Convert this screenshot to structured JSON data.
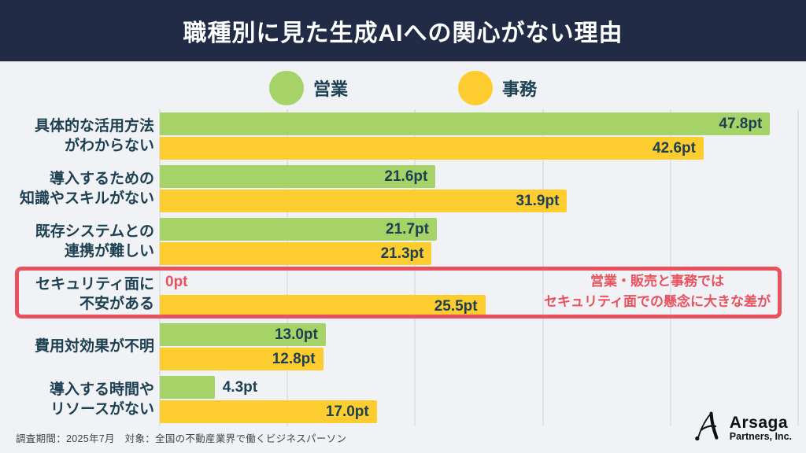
{
  "header": {
    "title": "職種別に見た生成AIへの関心がない理由",
    "bg_color": "#212b46"
  },
  "chart_data": {
    "type": "bar",
    "orientation": "horizontal",
    "unit": "pt",
    "axis_max": 50,
    "gridlines_every": 10,
    "grid": true,
    "legend_position": "top-center",
    "series": [
      {
        "name": "営業",
        "color": "#a5d368"
      },
      {
        "name": "事務",
        "color": "#fdcc2f"
      }
    ],
    "categories": [
      {
        "label_lines": [
          "具体的な活用方法",
          "がわからない"
        ],
        "values": [
          47.8,
          42.6
        ],
        "value_labels": [
          "47.8pt",
          "42.6pt"
        ]
      },
      {
        "label_lines": [
          "導入するための",
          "知識やスキルがない"
        ],
        "values": [
          21.6,
          31.9
        ],
        "value_labels": [
          "21.6pt",
          "31.9pt"
        ]
      },
      {
        "label_lines": [
          "既存システムとの",
          "連携が難しい"
        ],
        "values": [
          21.7,
          21.3
        ],
        "value_labels": [
          "21.7pt",
          "21.3pt"
        ]
      },
      {
        "label_lines": [
          "セキュリティ面に",
          "不安がある"
        ],
        "values": [
          0,
          25.5
        ],
        "value_labels": [
          "0pt",
          "25.5pt"
        ],
        "highlighted": true
      },
      {
        "label_lines": [
          "費用対効果が不明"
        ],
        "values": [
          13.0,
          12.8
        ],
        "value_labels": [
          "13.0pt",
          "12.8pt"
        ]
      },
      {
        "label_lines": [
          "導入する時間や",
          "リソースがない"
        ],
        "values": [
          4.3,
          17.0
        ],
        "value_labels": [
          "4.3pt",
          "17.0pt"
        ]
      }
    ],
    "highlight": {
      "category": "セキュリティ面に不安がある",
      "annotation_lines": [
        "営業・販売と事務では",
        "セキュリティ面での懸念に大きな差が"
      ],
      "color": "#e8515d"
    }
  },
  "colors": {
    "background": "#f0f2f5",
    "text": "#1d4052",
    "gridline": "#dfe2e8",
    "highlight_red": "#e8515d"
  },
  "footer": {
    "note": "調査期間：2025年7月　対象：全国の不動産業界で働くビジネスパーソン"
  },
  "logo": {
    "name": "Arsaga",
    "sub": "Partners, Inc."
  }
}
